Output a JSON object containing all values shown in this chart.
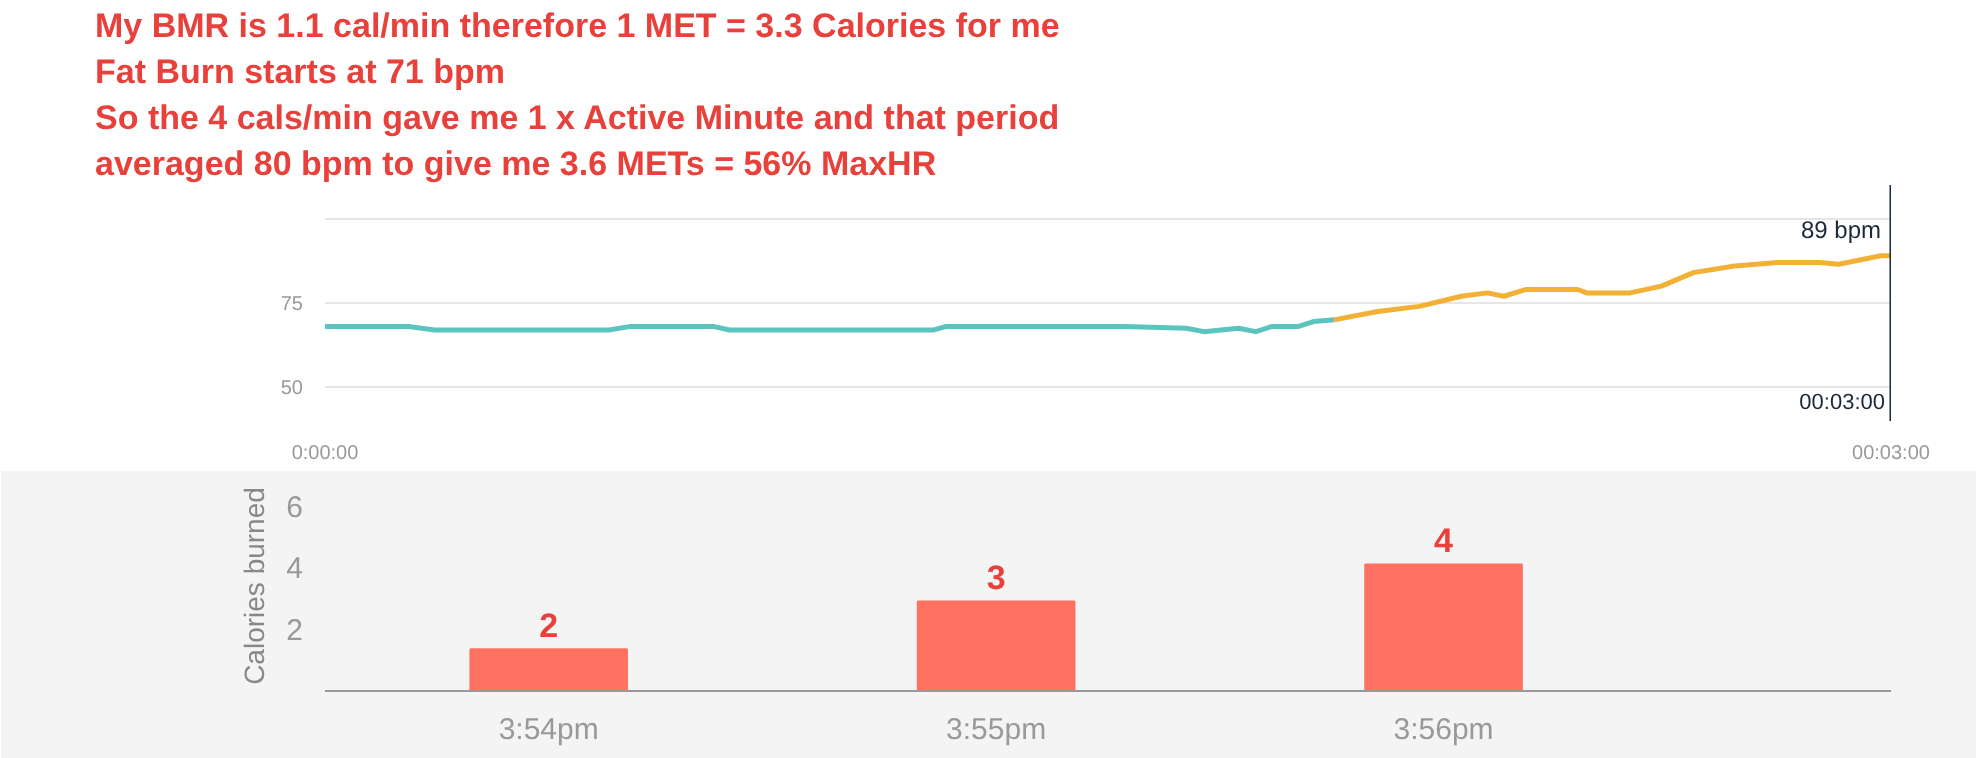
{
  "chart_data": [
    {
      "type": "line",
      "annotations": [
        "My BMR is 1.1 cal/min therefore 1 MET = 3.3 Calories for me",
        "Fat Burn starts at 71 bpm",
        "So the 4 cals/min gave me 1 x Active Minute and that period",
        "averaged 80 bpm to give me 3.6 METs = 56% MaxHR",
        {
          "text": "89 bpm",
          "x": 0.05,
          "y": 89
        }
      ],
      "series": [
        {
          "color": "#5bc4bf",
          "x": [
            0,
            0.00267,
            0.0035,
            0.00906,
            0.00972,
            0.01242,
            0.01292,
            0.01944,
            0.01981,
            0.02217,
            0.02553,
            0.0275,
            0.02806,
            0.02917,
            0.02972,
            0.03022,
            0.03106,
            0.03156,
            0.03222
          ],
          "values": [
            68,
            68,
            67,
            67,
            68,
            68,
            67,
            67,
            68,
            68,
            68,
            67.5,
            66.5,
            67.5,
            66.5,
            68,
            68,
            69.5,
            70
          ]
        },
        {
          "color": "#f2b134",
          "x": [
            0.03222,
            0.03361,
            0.03494,
            0.03628,
            0.03711,
            0.03764,
            0.03833,
            0.04,
            0.04028,
            0.04167,
            0.04267,
            0.04369,
            0.045,
            0.04639,
            0.04769,
            0.04833,
            0.04967,
            0.05
          ],
          "values": [
            70,
            72.5,
            74,
            77,
            78,
            77,
            79,
            79,
            78,
            78,
            80,
            84,
            86,
            87,
            87,
            86.5,
            89,
            89
          ]
        }
      ],
      "xlim": [
        0,
        0.05
      ],
      "xticks": [
        {
          "value": 0,
          "label": "0:00:00"
        },
        {
          "value": 0.05,
          "label": "00:03:00"
        }
      ],
      "ylim": [
        40,
        110
      ],
      "yticks": [
        50,
        75,
        {
          "value": 100,
          "label": null
        }
      ],
      "grid": "y",
      "line_style": "solid",
      "marker": "none",
      "ref_lines": [
        {
          "axis": "x",
          "value": 0.05,
          "label": "00:03:00",
          "color": "#1b2a3a"
        }
      ]
    },
    {
      "type": "bar",
      "ylabel": "Calories burned",
      "categories": [
        "3:54pm",
        "3:55pm",
        "3:56pm"
      ],
      "values": [
        1.35,
        2.9,
        4.1
      ],
      "annotations": [
        {
          "text": "2",
          "x": "3:54pm",
          "y": 1.35
        },
        {
          "text": "3",
          "x": "3:55pm",
          "y": 2.9
        },
        {
          "text": "4",
          "x": "3:56pm",
          "y": 4.1
        }
      ],
      "color": "#ff7161",
      "ylim": [
        0,
        6.8
      ],
      "yticks": [
        2,
        4,
        6
      ],
      "grid": false
    }
  ]
}
